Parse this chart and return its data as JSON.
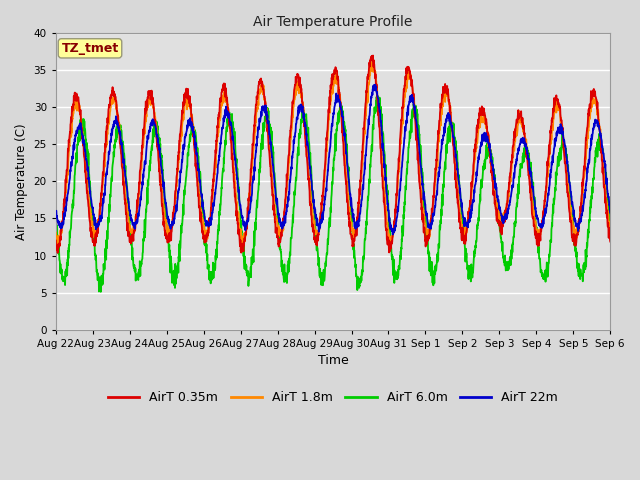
{
  "title": "Air Temperature Profile",
  "xlabel": "Time",
  "ylabel": "Air Temperature (C)",
  "ylim": [
    0,
    40
  ],
  "yticks": [
    0,
    5,
    10,
    15,
    20,
    25,
    30,
    35,
    40
  ],
  "xlabels": [
    "Aug 22",
    "Aug 23",
    "Aug 24",
    "Aug 25",
    "Aug 26",
    "Aug 27",
    "Aug 28",
    "Aug 29",
    "Aug 30",
    "Aug 31",
    "Sep 1",
    "Sep 2",
    "Sep 3",
    "Sep 4",
    "Sep 5",
    "Sep 6"
  ],
  "colors": {
    "AirT 0.35m": "#dd0000",
    "AirT 1.8m": "#ff8800",
    "AirT 6.0m": "#00cc00",
    "AirT 22m": "#0000cc"
  },
  "fig_facecolor": "#d8d8d8",
  "plot_facecolor": "#e0e0e0",
  "annotation_box_color": "#ffff99",
  "annotation_text": "TZ_tmet",
  "annotation_text_color": "#880000",
  "n_days": 15,
  "n_per_day": 144
}
